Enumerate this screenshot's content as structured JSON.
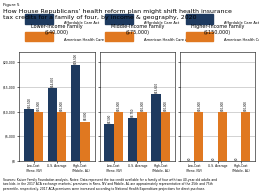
{
  "title": "How House Republicans’ health reform plan might shift health insurance\ntax credits for a family of four, by income & geography, 2020",
  "annotations": [
    "Figure 5",
    "Sources: Kaiser Family Foundation analysis. Notes: Data represent the tax credit available for a family of four with two 40-year-old adults and\ntwo kids, in the 2017 ACA exchange markets; premiums in Reno, NV and Mobile, AL are approximately representative of the 25th and 75th\npercentile, respectively. 2017 ACA premiums were increased according to National Health Expenditure projections for direct purchase."
  ],
  "chart_data": [
    {
      "type": "bar",
      "title": "Lower-Income Family\n($40,000)",
      "categories": [
        "Low-Cost\n(Reno, NV)",
        "U.S. Average",
        "High-Cost\n(Mobile, AL)"
      ],
      "series": [
        {
          "name": "Affordable Care Act",
          "color": "#1e3a5f",
          "values": [
            10500,
            14800,
            19500
          ],
          "value_labels": [
            "$10,500",
            "$14,800",
            "$19,500"
          ]
        },
        {
          "name": "American Health Care Act",
          "color": "#e07820",
          "values": [
            10000,
            10000,
            8000
          ],
          "value_labels": [
            "$10,000",
            "$10,000",
            "$8,000"
          ]
        }
      ],
      "ylim": [
        0,
        22000
      ],
      "yticks": [
        {
          "value": 0,
          "label": "$0"
        },
        {
          "value": 5000,
          "label": "$5,000"
        },
        {
          "value": 10000,
          "label": "$10,000"
        },
        {
          "value": 15000,
          "label": "$15,000"
        },
        {
          "value": 20000,
          "label": "$20,000"
        }
      ],
      "grid": true,
      "legend": "upper left",
      "data_labels": true
    },
    {
      "type": "bar",
      "title": "Middle-Income Family\n($75,000)",
      "categories": [
        "Low-Cost\n(Reno, NV)",
        "U.S. Average",
        "High-Cost\n(Mobile, AL)"
      ],
      "series": [
        {
          "name": "Affordable Care Act",
          "color": "#1e3a5f",
          "values": [
            7500,
            8750,
            13600
          ],
          "value_labels": [
            "$7,500",
            "$8,750",
            "$13,600"
          ]
        },
        {
          "name": "American Health Care Act",
          "color": "#e07820",
          "values": [
            10000,
            10000,
            10000
          ],
          "value_labels": [
            "$10,000",
            "$10,000",
            "$10,000"
          ]
        }
      ],
      "ylim": [
        0,
        22000
      ],
      "yticks": [
        0,
        5000,
        10000,
        15000,
        20000
      ],
      "grid": true,
      "legend": "upper left",
      "data_labels": true,
      "tick_labels": "x"
    },
    {
      "type": "bar",
      "title": "Higher-Income Family\n($150,000)",
      "categories": [
        "Low-Cost\n(Reno, NV)",
        "U.S. Average",
        "High-Cost\n(Mobile, AL)"
      ],
      "series": [
        {
          "name": "Affordable Care Act",
          "color": "#1e3a5f",
          "values": [
            0,
            0,
            0
          ],
          "value_labels": [
            "$0",
            "$0",
            "$0"
          ]
        },
        {
          "name": "American Health Care Act",
          "color": "#e07820",
          "values": [
            10000,
            10000,
            10000
          ],
          "value_labels": [
            "$10,000",
            "$10,000",
            "$10,000"
          ]
        }
      ],
      "ylim": [
        0,
        22000
      ],
      "yticks": [
        0,
        5000,
        10000,
        15000,
        20000
      ],
      "grid": true,
      "legend": "upper left",
      "data_labels": true,
      "tick_labels": "x"
    }
  ]
}
